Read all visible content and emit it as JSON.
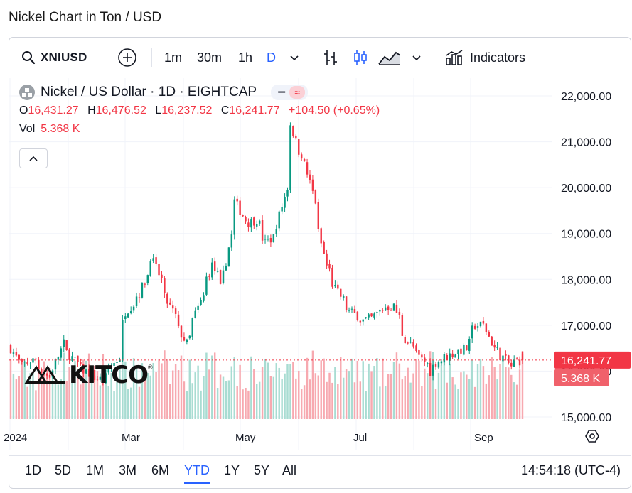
{
  "page": {
    "title": "Nickel Chart in Ton / USD"
  },
  "toolbar": {
    "symbol": "XNIUSD",
    "timeframes": [
      "1m",
      "30m",
      "1h",
      "D"
    ],
    "active_timeframe": "D",
    "indicators_label": "Indicators",
    "icons": [
      "search-icon",
      "add-symbol-icon",
      "chevron-down-icon",
      "bars-icon",
      "candles-icon",
      "area-icon",
      "chevron-down-icon",
      "indicators-icon"
    ]
  },
  "legend": {
    "title": "Nickel / US Dollar · 1D · EIGHTCAP",
    "o_key": "O",
    "o_val": "16,431.27",
    "h_key": "H",
    "h_val": "16,476.52",
    "l_key": "L",
    "l_val": "16,237.52",
    "c_key": "C",
    "c_val": "16,241.77",
    "change": "+104.50 (+0.65%)",
    "vol_key": "Vol",
    "vol_val": "5.368 K"
  },
  "watermark": {
    "text": "KITCO"
  },
  "footer": {
    "ranges": [
      "1D",
      "5D",
      "1M",
      "3M",
      "6M",
      "YTD",
      "1Y",
      "5Y",
      "All"
    ],
    "active_range": "YTD",
    "clock": "14:54:18 (UTC-4)"
  },
  "colors": {
    "up": "#089981",
    "down": "#f23645",
    "up_vol": "#a8dcd2",
    "down_vol": "#f7a9b0",
    "accent": "#2962ff"
  },
  "chart_data": {
    "type": "candlestick",
    "title": "Nickel / US Dollar · 1D · EIGHTCAP",
    "y_ticks": [
      "22,000.00",
      "21,000.00",
      "20,000.00",
      "19,000.00",
      "18,000.00",
      "17,000.00",
      "16,000.00",
      "15,000.00"
    ],
    "y_tick_values": [
      22000,
      21000,
      20000,
      19000,
      18000,
      17000,
      16000,
      15000
    ],
    "ylim": [
      15000,
      22000
    ],
    "x_ticks": [
      "2024",
      "Mar",
      "May",
      "Jul",
      "Sep"
    ],
    "last_price": 16241.77,
    "last_price_label": "16,241.77",
    "last_volume_label": "5.368 K",
    "grid": true,
    "anchors": [
      [
        "Jan 1",
        16500
      ],
      [
        "Jan 5",
        16100
      ],
      [
        "Jan 12",
        16250
      ],
      [
        "Jan 20",
        15800
      ],
      [
        "Jan 26",
        16600
      ],
      [
        "Feb 3",
        16100
      ],
      [
        "Feb 10",
        15900
      ],
      [
        "Feb 15",
        15800
      ],
      [
        "Feb 23",
        16300
      ],
      [
        "Feb 27",
        17300
      ],
      [
        "Mar 5",
        17700
      ],
      [
        "Mar 11",
        18500
      ],
      [
        "Mar 18",
        17600
      ],
      [
        "Mar 28",
        16600
      ],
      [
        "Apr 4",
        17500
      ],
      [
        "Apr 10",
        18300
      ],
      [
        "Apr 15",
        17800
      ],
      [
        "Apr 18",
        18700
      ],
      [
        "Apr 22",
        19700
      ],
      [
        "Apr 27",
        19200
      ],
      [
        "May 2",
        19300
      ],
      [
        "May 7",
        18800
      ],
      [
        "May 12",
        19000
      ],
      [
        "May 17",
        20000
      ],
      [
        "May 20",
        21400
      ],
      [
        "May 23",
        20800
      ],
      [
        "May 27",
        20500
      ],
      [
        "Jun 1",
        19500
      ],
      [
        "Jun 6",
        18300
      ],
      [
        "Jun 12",
        17700
      ],
      [
        "Jun 18",
        17300
      ],
      [
        "Jun 25",
        17100
      ],
      [
        "Jul 1",
        17200
      ],
      [
        "Jul 5",
        17400
      ],
      [
        "Jul 10",
        17400
      ],
      [
        "Jul 16",
        16700
      ],
      [
        "Jul 23",
        16300
      ],
      [
        "Jul 29",
        16000
      ],
      [
        "Jul 31",
        16200
      ],
      [
        "Aug 5",
        16300
      ],
      [
        "Aug 9",
        16400
      ],
      [
        "Aug 15",
        16500
      ],
      [
        "Aug 20",
        17000
      ],
      [
        "Aug 25",
        17000
      ],
      [
        "Aug 29",
        16500
      ],
      [
        "Sep 3",
        16300
      ],
      [
        "Sep 6",
        16100
      ],
      [
        "Sep 9",
        16200
      ],
      [
        "Sep 12",
        16241.77
      ]
    ]
  }
}
